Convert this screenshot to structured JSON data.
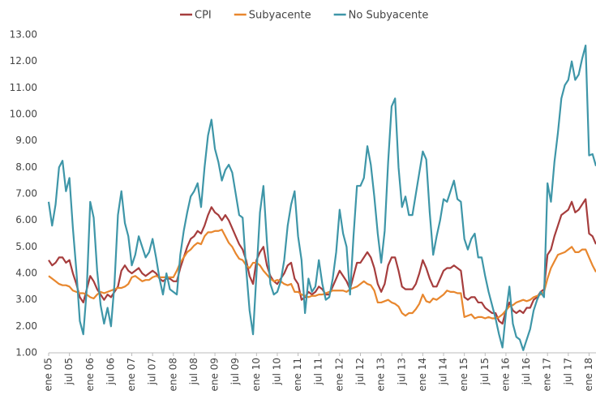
{
  "chart_data": {
    "type": "line",
    "categories": [
      "ene 05",
      null,
      null,
      null,
      null,
      null,
      "jul 05",
      null,
      null,
      null,
      null,
      null,
      "ene 06",
      null,
      null,
      null,
      null,
      null,
      "jul 06",
      null,
      null,
      null,
      null,
      null,
      "ene 07",
      null,
      null,
      null,
      null,
      null,
      "jul 07",
      null,
      null,
      null,
      null,
      null,
      "ene 08",
      null,
      null,
      null,
      null,
      null,
      "jul 08",
      null,
      null,
      null,
      null,
      null,
      "ene 09",
      null,
      null,
      null,
      null,
      null,
      "jul 09",
      null,
      null,
      null,
      null,
      null,
      "ene 10",
      null,
      null,
      null,
      null,
      null,
      "jul 10",
      null,
      null,
      null,
      null,
      null,
      "ene 11",
      null,
      null,
      null,
      null,
      null,
      "jul 11",
      null,
      null,
      null,
      null,
      null,
      "ene 12",
      null,
      null,
      null,
      null,
      null,
      "jul 12",
      null,
      null,
      null,
      null,
      null,
      "ene 13",
      null,
      null,
      null,
      null,
      null,
      "jul 13",
      null,
      null,
      null,
      null,
      null,
      "ene 14",
      null,
      null,
      null,
      null,
      null,
      "jul 14",
      null,
      null,
      null,
      null,
      null,
      "ene 15",
      null,
      null,
      null,
      null,
      null,
      "jul 15",
      null,
      null,
      null,
      null,
      null,
      "ene 16",
      null,
      null,
      null,
      null,
      null,
      "jul 16",
      null,
      null,
      null,
      null,
      null,
      "ene 17",
      null,
      null,
      null,
      null,
      null,
      "jul 17",
      null,
      null,
      null,
      null,
      null,
      "ene 18",
      null,
      null
    ],
    "series": [
      {
        "name": "CPI",
        "color": "#a63d3d",
        "values": [
          4.5,
          4.3,
          4.4,
          4.6,
          4.6,
          4.4,
          4.5,
          4.0,
          3.6,
          3.1,
          2.9,
          3.4,
          3.9,
          3.7,
          3.4,
          3.2,
          3.0,
          3.2,
          3.1,
          3.3,
          3.5,
          4.1,
          4.3,
          4.1,
          4.0,
          4.1,
          4.2,
          4.0,
          3.9,
          4.0,
          4.1,
          4.0,
          3.8,
          3.7,
          3.8,
          3.8,
          3.7,
          3.7,
          4.2,
          4.6,
          5.0,
          5.3,
          5.4,
          5.6,
          5.5,
          5.8,
          6.2,
          6.5,
          6.3,
          6.2,
          6.0,
          6.2,
          6.0,
          5.7,
          5.4,
          5.1,
          4.9,
          4.5,
          3.9,
          3.6,
          4.5,
          4.8,
          5.0,
          4.3,
          3.9,
          3.7,
          3.6,
          3.8,
          4.0,
          4.3,
          4.4,
          3.8,
          3.6,
          3.0,
          3.1,
          3.3,
          3.2,
          3.3,
          3.5,
          3.4,
          3.2,
          3.2,
          3.5,
          3.8,
          4.1,
          3.9,
          3.7,
          3.4,
          3.9,
          4.4,
          4.4,
          4.6,
          4.8,
          4.6,
          4.2,
          3.6,
          3.3,
          3.6,
          4.3,
          4.6,
          4.6,
          4.1,
          3.5,
          3.4,
          3.4,
          3.4,
          3.6,
          4.0,
          4.5,
          4.2,
          3.8,
          3.5,
          3.5,
          3.8,
          4.1,
          4.2,
          4.2,
          4.3,
          4.2,
          4.1,
          3.1,
          3.0,
          3.1,
          3.1,
          2.9,
          2.9,
          2.7,
          2.6,
          2.5,
          2.5,
          2.2,
          2.1,
          2.6,
          2.9,
          2.6,
          2.5,
          2.6,
          2.5,
          2.7,
          2.7,
          3.0,
          3.1,
          3.3,
          3.4,
          4.7,
          4.9,
          5.4,
          5.8,
          6.2,
          6.3,
          6.4,
          6.7,
          6.3,
          6.4,
          6.6,
          6.8,
          5.5,
          5.4,
          5.1
        ]
      },
      {
        "name": "Subyacente",
        "color": "#e8872e",
        "values": [
          3.9,
          3.8,
          3.7,
          3.6,
          3.55,
          3.55,
          3.5,
          3.35,
          3.3,
          3.25,
          3.25,
          3.2,
          3.1,
          3.05,
          3.2,
          3.3,
          3.25,
          3.3,
          3.35,
          3.4,
          3.45,
          3.45,
          3.5,
          3.6,
          3.85,
          3.9,
          3.8,
          3.7,
          3.75,
          3.75,
          3.85,
          3.9,
          3.85,
          3.85,
          3.85,
          3.85,
          3.85,
          4.1,
          4.4,
          4.6,
          4.8,
          4.9,
          5.05,
          5.15,
          5.1,
          5.4,
          5.55,
          5.55,
          5.6,
          5.6,
          5.65,
          5.4,
          5.15,
          5.0,
          4.75,
          4.55,
          4.5,
          4.3,
          4.2,
          4.4,
          4.4,
          4.3,
          4.1,
          3.95,
          3.8,
          3.7,
          3.75,
          3.7,
          3.6,
          3.55,
          3.6,
          3.3,
          3.3,
          3.2,
          3.15,
          3.1,
          3.15,
          3.15,
          3.2,
          3.2,
          3.25,
          3.3,
          3.35,
          3.35,
          3.35,
          3.35,
          3.3,
          3.4,
          3.45,
          3.5,
          3.6,
          3.7,
          3.6,
          3.55,
          3.35,
          2.9,
          2.9,
          2.95,
          3.0,
          2.9,
          2.85,
          2.75,
          2.5,
          2.4,
          2.5,
          2.5,
          2.65,
          2.85,
          3.2,
          2.95,
          2.9,
          3.05,
          3.0,
          3.1,
          3.2,
          3.35,
          3.3,
          3.3,
          3.25,
          3.25,
          2.35,
          2.4,
          2.45,
          2.3,
          2.35,
          2.35,
          2.3,
          2.35,
          2.3,
          2.3,
          2.35,
          2.45,
          2.6,
          2.75,
          2.8,
          2.9,
          2.95,
          3.0,
          2.95,
          3.0,
          3.1,
          3.15,
          3.2,
          3.3,
          3.8,
          4.2,
          4.45,
          4.7,
          4.75,
          4.8,
          4.9,
          5.0,
          4.8,
          4.8,
          4.9,
          4.9,
          4.6,
          4.3,
          4.05
        ]
      },
      {
        "name": "No Subyacente",
        "color": "#3e96a8",
        "values": [
          6.7,
          5.8,
          6.6,
          8.0,
          8.25,
          7.1,
          7.6,
          5.7,
          4.1,
          2.2,
          1.7,
          3.4,
          6.7,
          6.1,
          4.1,
          2.8,
          2.1,
          2.7,
          2.0,
          3.6,
          6.2,
          7.1,
          5.9,
          5.4,
          4.3,
          4.7,
          5.4,
          5.0,
          4.6,
          4.8,
          5.3,
          4.6,
          3.8,
          3.2,
          4.0,
          3.4,
          3.3,
          3.2,
          4.7,
          5.6,
          6.3,
          6.9,
          7.1,
          7.4,
          6.5,
          8.0,
          9.2,
          9.8,
          8.7,
          8.2,
          7.5,
          7.9,
          8.1,
          7.8,
          7.0,
          6.2,
          6.1,
          4.2,
          2.6,
          1.7,
          4.0,
          6.3,
          7.3,
          5.2,
          3.6,
          3.2,
          3.3,
          3.7,
          4.5,
          5.8,
          6.6,
          7.1,
          5.4,
          4.5,
          2.5,
          3.8,
          3.3,
          3.5,
          4.5,
          3.6,
          3.0,
          3.1,
          3.8,
          4.8,
          6.4,
          5.5,
          5.0,
          3.2,
          5.4,
          7.3,
          7.3,
          7.6,
          8.8,
          8.1,
          6.9,
          5.5,
          4.4,
          5.6,
          8.2,
          10.3,
          10.6,
          8.0,
          6.5,
          6.9,
          6.2,
          6.2,
          7.0,
          7.8,
          8.6,
          8.3,
          6.3,
          4.7,
          5.4,
          6.0,
          6.8,
          6.7,
          7.1,
          7.5,
          6.8,
          6.7,
          5.3,
          4.9,
          5.3,
          5.5,
          4.6,
          4.6,
          3.9,
          3.3,
          2.8,
          2.3,
          1.7,
          1.2,
          2.5,
          3.5,
          2.1,
          1.6,
          1.5,
          1.1,
          1.5,
          1.9,
          2.6,
          3.0,
          3.3,
          3.1,
          7.4,
          6.7,
          8.2,
          9.3,
          10.6,
          11.1,
          11.3,
          12.0,
          11.3,
          11.5,
          12.1,
          12.6,
          8.45,
          8.5,
          8.05
        ]
      }
    ],
    "ylim": [
      1,
      13
    ],
    "yticks": [
      {
        "value": 1,
        "label": "1.00"
      },
      {
        "value": 2,
        "label": "2.00"
      },
      {
        "value": 3,
        "label": "3.00"
      },
      {
        "value": 4,
        "label": "4.00"
      },
      {
        "value": 5,
        "label": "5.00"
      },
      {
        "value": 6,
        "label": "6.00"
      },
      {
        "value": 7,
        "label": "7.00"
      },
      {
        "value": 8,
        "label": "8.00"
      },
      {
        "value": 9,
        "label": "9.00"
      },
      {
        "value": 10,
        "label": "10.00"
      },
      {
        "value": 11,
        "label": "11.00"
      },
      {
        "value": 12,
        "label": "12.00"
      },
      {
        "value": 13,
        "label": "13.00"
      }
    ],
    "grid": false,
    "legend": "top"
  }
}
